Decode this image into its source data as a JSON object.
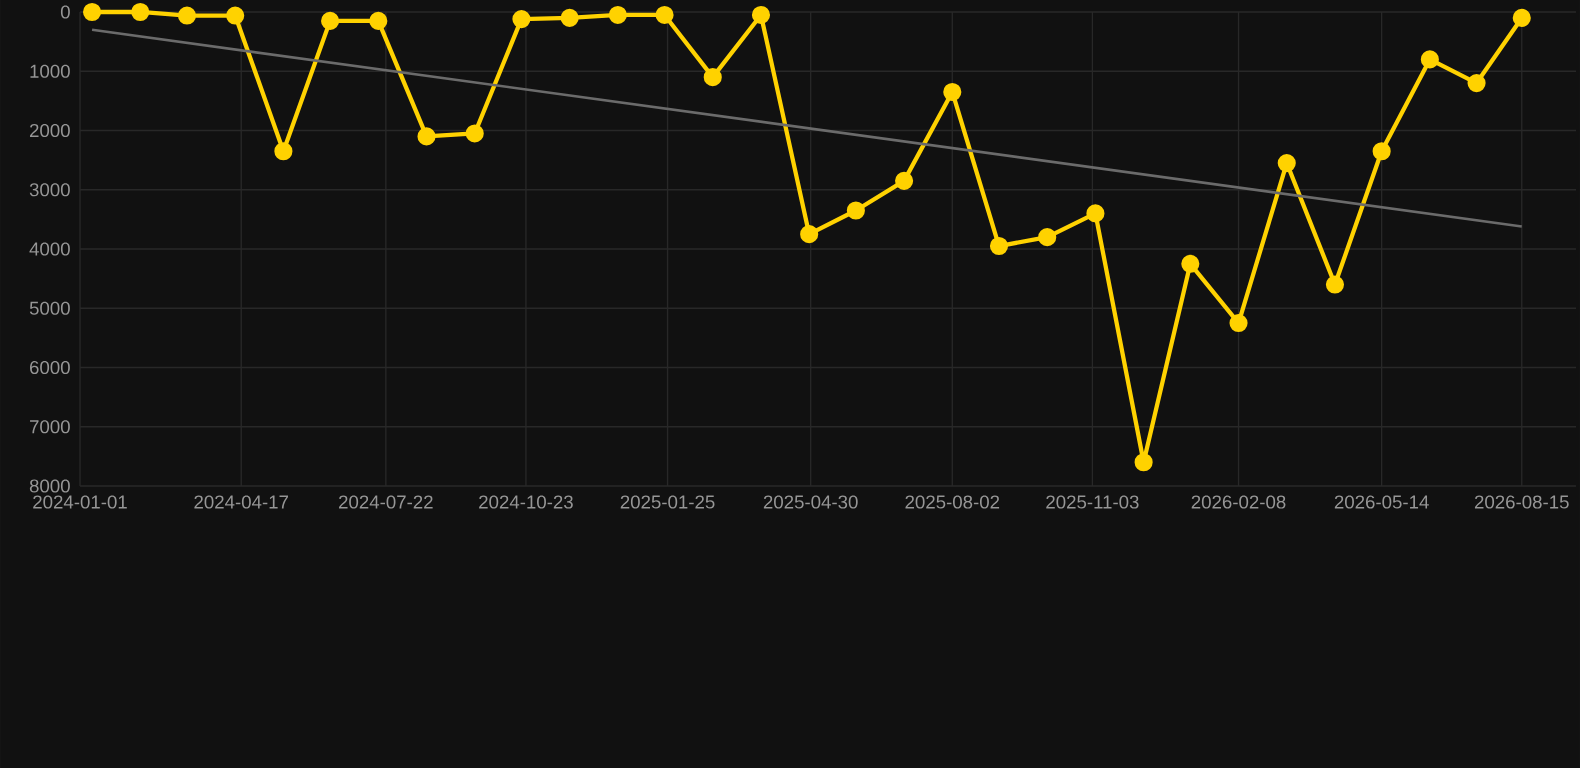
{
  "chart_data": {
    "type": "line",
    "x": [
      "2024-01-09",
      "2024-02-10",
      "2024-03-12",
      "2024-04-13",
      "2024-05-15",
      "2024-06-15",
      "2024-07-17",
      "2024-08-18",
      "2024-09-19",
      "2024-10-20",
      "2024-11-21",
      "2024-12-23",
      "2025-01-23",
      "2025-02-24",
      "2025-03-28",
      "2025-04-29",
      "2025-05-30",
      "2025-07-01",
      "2025-08-02",
      "2025-09-02",
      "2025-10-04",
      "2025-11-05",
      "2025-12-07",
      "2026-01-07",
      "2026-02-08",
      "2026-03-12",
      "2026-04-13",
      "2026-05-14",
      "2026-06-15",
      "2026-07-16",
      "2026-08-15"
    ],
    "series": [
      {
        "color": "#ffd200",
        "marker": "circle",
        "values": [
          0,
          0,
          60,
          60,
          2350,
          150,
          150,
          2100,
          2050,
          120,
          100,
          50,
          50,
          1100,
          50,
          3750,
          3350,
          2850,
          1350,
          3950,
          3800,
          3400,
          7600,
          4250,
          5250,
          2550,
          4600,
          2350,
          800,
          1200,
          100
        ]
      },
      {
        "type": "line",
        "color": "#6b6b6b",
        "marker": "none",
        "x": [
          "2024-01-09",
          "2026-08-15"
        ],
        "values": [
          300,
          3620
        ]
      }
    ],
    "xlim": [
      "2024-01-01",
      "2026-09-20"
    ],
    "xticks": [
      "2024-01-01",
      "2024-04-17",
      "2024-07-22",
      "2024-10-23",
      "2025-01-25",
      "2025-04-30",
      "2025-08-02",
      "2025-11-03",
      "2026-02-08",
      "2026-05-14",
      "2026-08-15"
    ],
    "ylim": [
      8000,
      0
    ],
    "yticks": [
      0,
      1000,
      2000,
      3000,
      4000,
      5000,
      6000,
      7000,
      8000
    ],
    "grid": true
  }
}
